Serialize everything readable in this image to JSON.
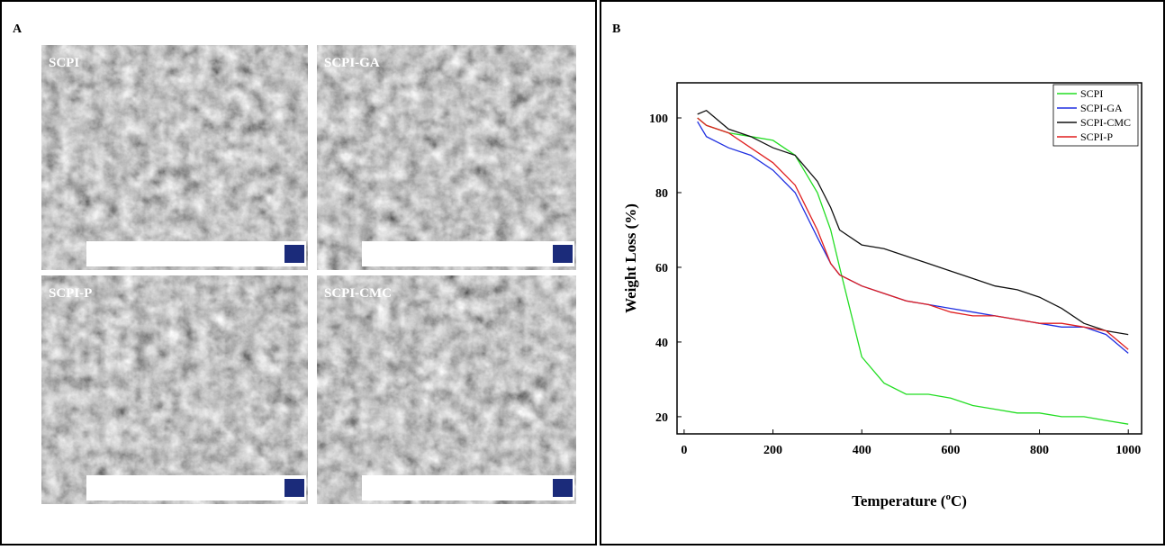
{
  "panel_a": {
    "label": "A",
    "images": [
      "SCPI",
      "SCPI-GA",
      "SCPI-P",
      "SCPI-CMC"
    ]
  },
  "panel_b_label": "B",
  "chart_data": {
    "type": "line",
    "ylabel": "Weight Loss (%)",
    "xlabel": {
      "text": "Temperature (",
      "sup": "o",
      "tail": "C)"
    },
    "x": [
      30,
      50,
      100,
      150,
      200,
      250,
      300,
      330,
      350,
      400,
      450,
      500,
      550,
      600,
      650,
      700,
      750,
      800,
      850,
      900,
      950,
      1000
    ],
    "series": [
      {
        "name": "SCPI",
        "color": "#22dd22",
        "values": [
          100,
          98,
          96,
          95,
          94,
          90,
          80,
          70,
          60,
          36,
          29,
          26,
          26,
          25,
          23,
          22,
          21,
          21,
          20,
          20,
          19,
          18
        ]
      },
      {
        "name": "SCPI-GA",
        "color": "#1f2fe0",
        "values": [
          99,
          95,
          92,
          90,
          86,
          80,
          68,
          61,
          58,
          55,
          53,
          51,
          50,
          49,
          48,
          47,
          46,
          45,
          44,
          44,
          42,
          37
        ]
      },
      {
        "name": "SCPI-CMC",
        "color": "#111111",
        "values": [
          101,
          102,
          97,
          95,
          92,
          90,
          83,
          76,
          70,
          66,
          65,
          63,
          61,
          59,
          57,
          55,
          54,
          52,
          49,
          45,
          43,
          42
        ]
      },
      {
        "name": "SCPI-P",
        "color": "#e01f1f",
        "values": [
          100,
          98,
          96,
          92,
          88,
          82,
          70,
          61,
          58,
          55,
          53,
          51,
          50,
          48,
          47,
          47,
          46,
          45,
          45,
          44,
          43,
          38
        ]
      }
    ],
    "xlim": [
      -16,
      1030
    ],
    "ylim": [
      15.4,
      109.4
    ],
    "xticks": [
      0,
      200,
      400,
      600,
      800,
      1000
    ],
    "yticks": [
      20,
      40,
      60,
      80,
      100
    ],
    "grid": false,
    "legend": "top-right"
  }
}
